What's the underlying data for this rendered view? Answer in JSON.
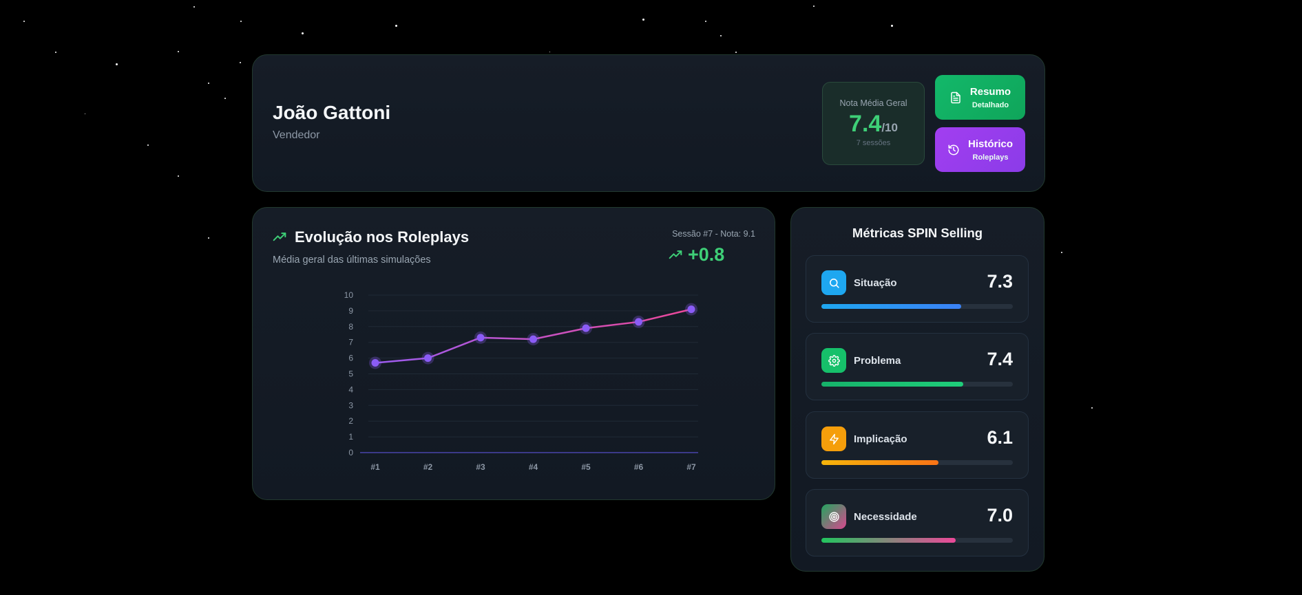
{
  "profile": {
    "name": "João Gattoni",
    "role": "Vendedor"
  },
  "average": {
    "label": "Nota Média Geral",
    "value": "7.4",
    "max": "/10",
    "sessions": "7 sessões",
    "color": "#3ecf77"
  },
  "buttons": {
    "summary": {
      "line1": "Resumo",
      "line2": "Detalhado",
      "icon": "document-icon",
      "color": "#13b86a"
    },
    "history": {
      "line1": "Histórico",
      "line2": "Roleplays",
      "icon": "history-icon",
      "color": "#9b3ef0"
    }
  },
  "evolution": {
    "title": "Evolução nos Roleplays",
    "subtitle": "Média geral das últimas simulações",
    "session_info": "Sessão #7 - Nota: 9.1",
    "delta": "+0.8",
    "icon": "trending-up-icon"
  },
  "chart_data": {
    "type": "line",
    "title": "Evolução nos Roleplays",
    "categories": [
      "#1",
      "#2",
      "#3",
      "#4",
      "#5",
      "#6",
      "#7"
    ],
    "series": [
      {
        "name": "Média geral",
        "values": [
          5.7,
          6.0,
          7.3,
          7.2,
          7.9,
          8.3,
          9.1
        ]
      }
    ],
    "ylim": [
      0,
      10
    ],
    "yticks": [
      "0",
      "1",
      "2",
      "3",
      "4",
      "5",
      "6",
      "7",
      "8",
      "9",
      "10"
    ],
    "grid": true,
    "line_color_start": "#9b5cf0",
    "line_color_end": "#ec4899",
    "marker_color": "#8b5cf6"
  },
  "spin": {
    "title": "Métricas SPIN Selling",
    "metrics": [
      {
        "name": "Situação",
        "score": "7.3",
        "value": 7.3,
        "icon": "search-icon",
        "icon_bg": "#1ea7f0",
        "bar_from": "#1ea7f0",
        "bar_to": "#3b82f6"
      },
      {
        "name": "Problema",
        "score": "7.4",
        "value": 7.4,
        "icon": "gear-icon",
        "icon_bg": "#16c06a",
        "bar_from": "#16b26a",
        "bar_to": "#1fce7a"
      },
      {
        "name": "Implicação",
        "score": "6.1",
        "value": 6.1,
        "icon": "lightning-icon",
        "icon_bg": "#f59e0b",
        "bar_from": "#f5b40b",
        "bar_to": "#f97316"
      },
      {
        "name": "Necessidade",
        "score": "7.0",
        "value": 7.0,
        "icon": "target-icon",
        "icon_bg": "#8a6a8a",
        "bar_from": "#22c55e",
        "bar_to": "#ec4899"
      }
    ]
  }
}
